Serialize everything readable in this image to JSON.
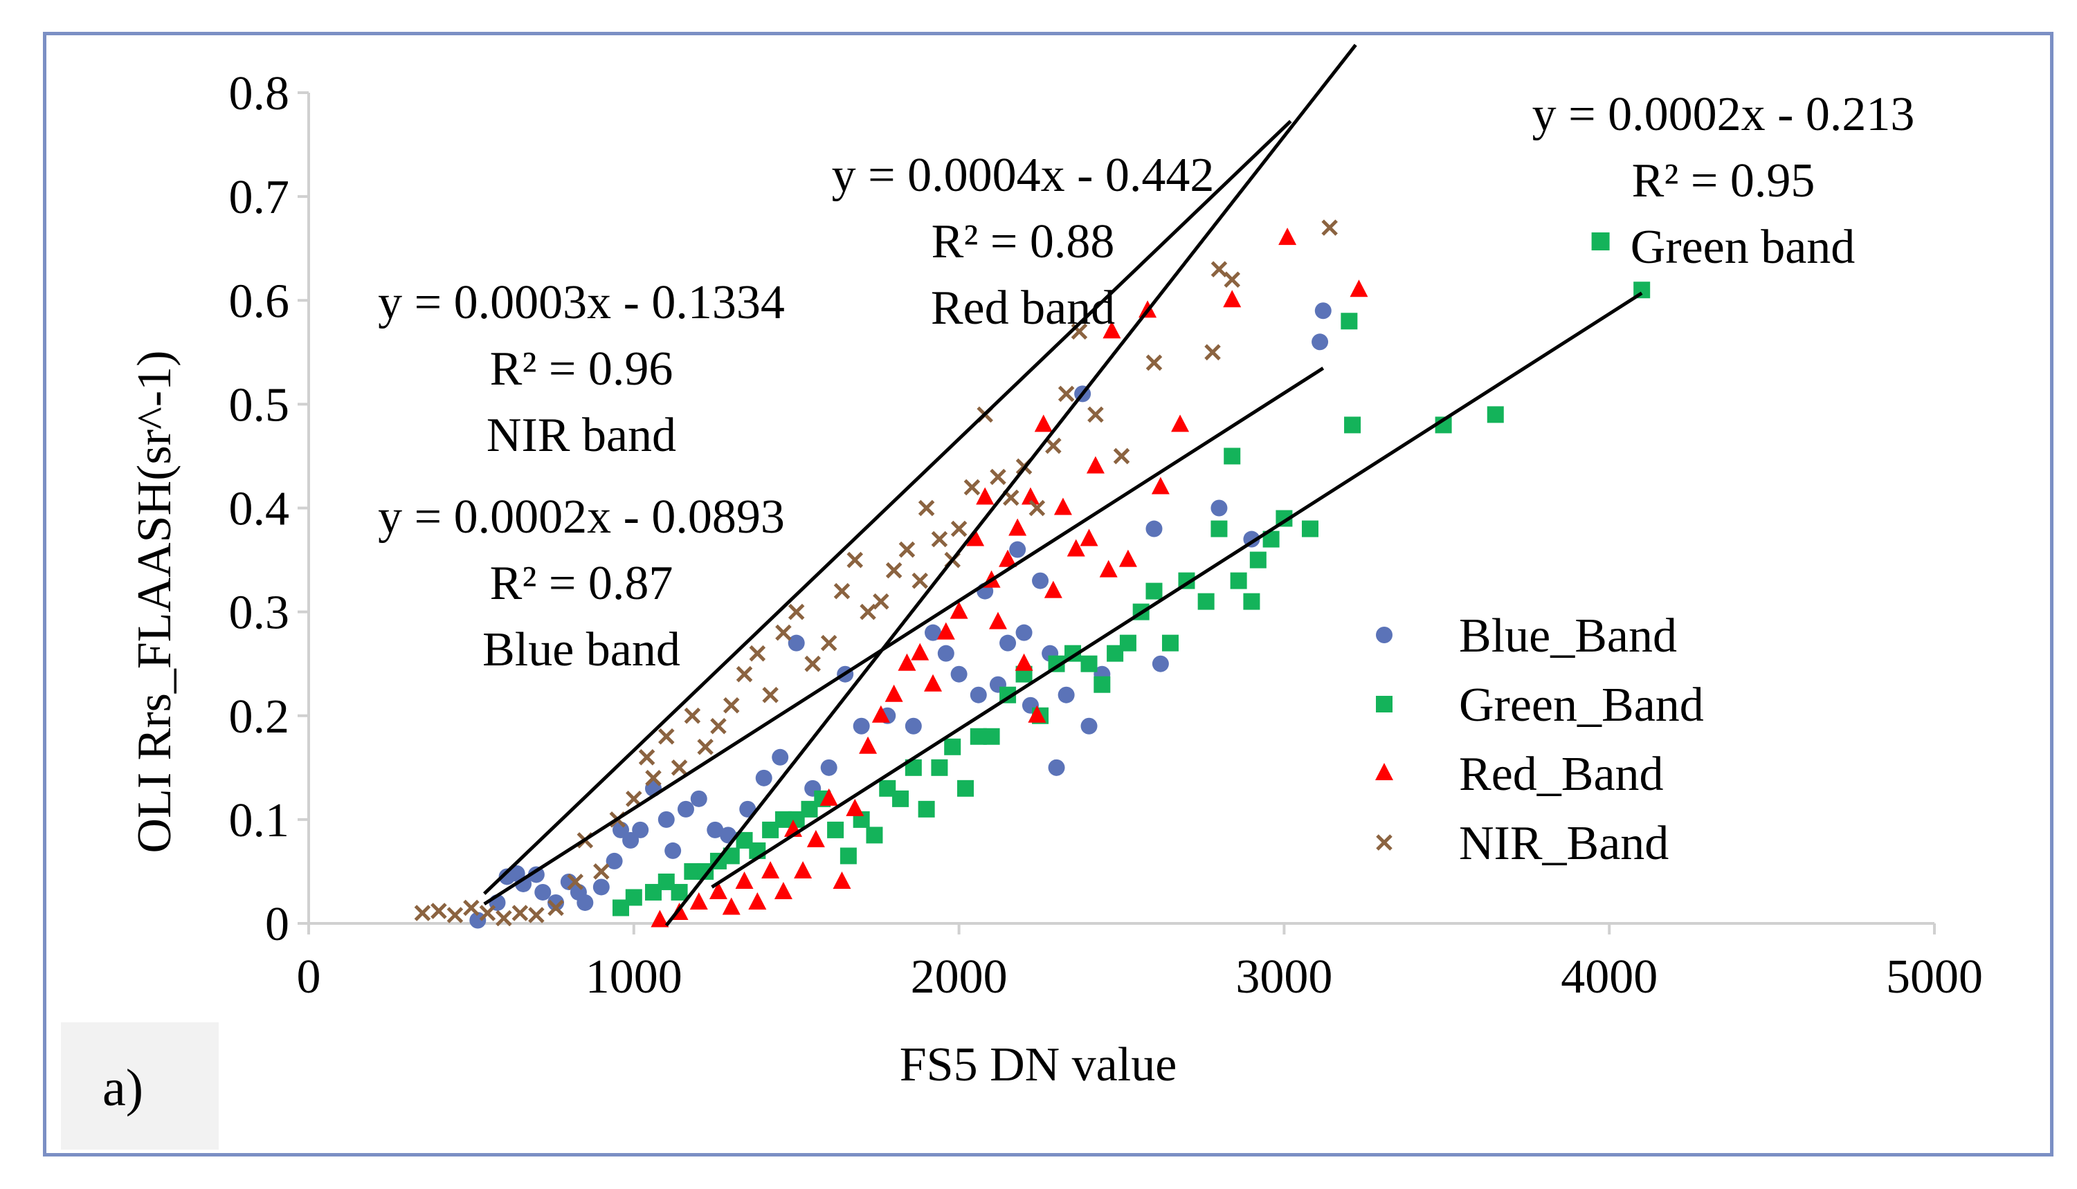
{
  "panel_label": "a)",
  "colors": {
    "blue": "#5b73b8",
    "green": "#14b35a",
    "red": "#ff0000",
    "nir": "#8b6340",
    "frame": "#7b8fc4",
    "axis": "#d0d0d0"
  },
  "chart_data": {
    "type": "scatter",
    "title": "",
    "xlabel": "FS5 DN value",
    "ylabel": "OLI Rrs_FLAASH(sr^-1)",
    "xlim": [
      0,
      5000
    ],
    "ylim": [
      0,
      0.8
    ],
    "xticks": [
      "0",
      "1000",
      "2000",
      "3000",
      "4000",
      "5000"
    ],
    "yticks": [
      "0",
      "0.1",
      "0.2",
      "0.3",
      "0.4",
      "0.5",
      "0.6",
      "0.7",
      "0.8"
    ],
    "grid": false,
    "legend_position": "bottom-right",
    "series": [
      {
        "name": "Blue_Band",
        "marker": "circle",
        "color": "#5b73b8",
        "points": [
          [
            520,
            0.003
          ],
          [
            580,
            0.02
          ],
          [
            610,
            0.045
          ],
          [
            640,
            0.048
          ],
          [
            660,
            0.038
          ],
          [
            700,
            0.047
          ],
          [
            720,
            0.03
          ],
          [
            760,
            0.02
          ],
          [
            800,
            0.04
          ],
          [
            830,
            0.03
          ],
          [
            850,
            0.02
          ],
          [
            900,
            0.035
          ],
          [
            940,
            0.06
          ],
          [
            960,
            0.09
          ],
          [
            990,
            0.08
          ],
          [
            1020,
            0.09
          ],
          [
            1060,
            0.13
          ],
          [
            1100,
            0.1
          ],
          [
            1120,
            0.07
          ],
          [
            1160,
            0.11
          ],
          [
            1200,
            0.12
          ],
          [
            1250,
            0.09
          ],
          [
            1290,
            0.085
          ],
          [
            1350,
            0.11
          ],
          [
            1400,
            0.14
          ],
          [
            1450,
            0.16
          ],
          [
            1500,
            0.27
          ],
          [
            1550,
            0.13
          ],
          [
            1600,
            0.15
          ],
          [
            1650,
            0.24
          ],
          [
            1700,
            0.19
          ],
          [
            1780,
            0.2
          ],
          [
            1860,
            0.19
          ],
          [
            1920,
            0.28
          ],
          [
            1960,
            0.26
          ],
          [
            2000,
            0.24
          ],
          [
            2060,
            0.22
          ],
          [
            2080,
            0.32
          ],
          [
            2120,
            0.23
          ],
          [
            2150,
            0.27
          ],
          [
            2180,
            0.36
          ],
          [
            2200,
            0.28
          ],
          [
            2220,
            0.21
          ],
          [
            2250,
            0.33
          ],
          [
            2280,
            0.26
          ],
          [
            2300,
            0.15
          ],
          [
            2330,
            0.22
          ],
          [
            2380,
            0.51
          ],
          [
            2400,
            0.19
          ],
          [
            2440,
            0.24
          ],
          [
            2600,
            0.38
          ],
          [
            2620,
            0.25
          ],
          [
            2800,
            0.4
          ],
          [
            2900,
            0.37
          ],
          [
            3120,
            0.59
          ],
          [
            3110,
            0.56
          ]
        ]
      },
      {
        "name": "Green_Band",
        "marker": "square",
        "color": "#14b35a",
        "points": [
          [
            960,
            0.015
          ],
          [
            1000,
            0.025
          ],
          [
            1060,
            0.03
          ],
          [
            1100,
            0.04
          ],
          [
            1140,
            0.03
          ],
          [
            1180,
            0.05
          ],
          [
            1220,
            0.05
          ],
          [
            1260,
            0.06
          ],
          [
            1300,
            0.065
          ],
          [
            1340,
            0.08
          ],
          [
            1380,
            0.07
          ],
          [
            1420,
            0.09
          ],
          [
            1460,
            0.1
          ],
          [
            1500,
            0.1
          ],
          [
            1540,
            0.11
          ],
          [
            1580,
            0.12
          ],
          [
            1620,
            0.09
          ],
          [
            1660,
            0.065
          ],
          [
            1700,
            0.1
          ],
          [
            1740,
            0.085
          ],
          [
            1780,
            0.13
          ],
          [
            1820,
            0.12
          ],
          [
            1860,
            0.15
          ],
          [
            1900,
            0.11
          ],
          [
            1940,
            0.15
          ],
          [
            1980,
            0.17
          ],
          [
            2020,
            0.13
          ],
          [
            2060,
            0.18
          ],
          [
            2100,
            0.18
          ],
          [
            2150,
            0.22
          ],
          [
            2200,
            0.24
          ],
          [
            2250,
            0.2
          ],
          [
            2300,
            0.25
          ],
          [
            2350,
            0.26
          ],
          [
            2400,
            0.25
          ],
          [
            2440,
            0.23
          ],
          [
            2480,
            0.26
          ],
          [
            2520,
            0.27
          ],
          [
            2560,
            0.3
          ],
          [
            2600,
            0.32
          ],
          [
            2650,
            0.27
          ],
          [
            2700,
            0.33
          ],
          [
            2760,
            0.31
          ],
          [
            2800,
            0.38
          ],
          [
            2840,
            0.45
          ],
          [
            2860,
            0.33
          ],
          [
            2900,
            0.31
          ],
          [
            2920,
            0.35
          ],
          [
            2960,
            0.37
          ],
          [
            3000,
            0.39
          ],
          [
            3080,
            0.38
          ],
          [
            3200,
            0.58
          ],
          [
            3210,
            0.48
          ],
          [
            3490,
            0.48
          ],
          [
            3650,
            0.49
          ],
          [
            4100,
            0.61
          ]
        ]
      },
      {
        "name": "Red_Band",
        "marker": "triangle",
        "color": "#ff0000",
        "points": [
          [
            1080,
            0.003
          ],
          [
            1140,
            0.01
          ],
          [
            1200,
            0.02
          ],
          [
            1260,
            0.03
          ],
          [
            1300,
            0.015
          ],
          [
            1340,
            0.04
          ],
          [
            1380,
            0.02
          ],
          [
            1420,
            0.05
          ],
          [
            1460,
            0.03
          ],
          [
            1490,
            0.09
          ],
          [
            1520,
            0.05
          ],
          [
            1560,
            0.08
          ],
          [
            1600,
            0.12
          ],
          [
            1640,
            0.04
          ],
          [
            1680,
            0.11
          ],
          [
            1720,
            0.17
          ],
          [
            1760,
            0.2
          ],
          [
            1800,
            0.22
          ],
          [
            1840,
            0.25
          ],
          [
            1880,
            0.26
          ],
          [
            1920,
            0.23
          ],
          [
            1960,
            0.28
          ],
          [
            2000,
            0.3
          ],
          [
            2050,
            0.37
          ],
          [
            2080,
            0.41
          ],
          [
            2100,
            0.33
          ],
          [
            2120,
            0.29
          ],
          [
            2150,
            0.35
          ],
          [
            2180,
            0.38
          ],
          [
            2200,
            0.25
          ],
          [
            2220,
            0.41
          ],
          [
            2240,
            0.2
          ],
          [
            2260,
            0.48
          ],
          [
            2290,
            0.32
          ],
          [
            2320,
            0.4
          ],
          [
            2360,
            0.36
          ],
          [
            2400,
            0.37
          ],
          [
            2420,
            0.44
          ],
          [
            2460,
            0.34
          ],
          [
            2470,
            0.57
          ],
          [
            2520,
            0.35
          ],
          [
            2580,
            0.59
          ],
          [
            2620,
            0.42
          ],
          [
            2680,
            0.48
          ],
          [
            2840,
            0.6
          ],
          [
            3010,
            0.66
          ],
          [
            3230,
            0.61
          ]
        ]
      },
      {
        "name": "NIR_Band",
        "marker": "x",
        "color": "#8b6340",
        "points": [
          [
            350,
            0.01
          ],
          [
            400,
            0.012
          ],
          [
            450,
            0.008
          ],
          [
            500,
            0.015
          ],
          [
            550,
            0.01
          ],
          [
            600,
            0.005
          ],
          [
            650,
            0.01
          ],
          [
            700,
            0.008
          ],
          [
            760,
            0.015
          ],
          [
            820,
            0.04
          ],
          [
            850,
            0.08
          ],
          [
            900,
            0.05
          ],
          [
            950,
            0.1
          ],
          [
            1000,
            0.12
          ],
          [
            1040,
            0.16
          ],
          [
            1060,
            0.14
          ],
          [
            1100,
            0.18
          ],
          [
            1140,
            0.15
          ],
          [
            1180,
            0.2
          ],
          [
            1220,
            0.17
          ],
          [
            1260,
            0.19
          ],
          [
            1300,
            0.21
          ],
          [
            1340,
            0.24
          ],
          [
            1380,
            0.26
          ],
          [
            1420,
            0.22
          ],
          [
            1460,
            0.28
          ],
          [
            1500,
            0.3
          ],
          [
            1550,
            0.25
          ],
          [
            1600,
            0.27
          ],
          [
            1640,
            0.32
          ],
          [
            1680,
            0.35
          ],
          [
            1720,
            0.3
          ],
          [
            1760,
            0.31
          ],
          [
            1800,
            0.34
          ],
          [
            1840,
            0.36
          ],
          [
            1880,
            0.33
          ],
          [
            1900,
            0.4
          ],
          [
            1940,
            0.37
          ],
          [
            1980,
            0.35
          ],
          [
            2000,
            0.38
          ],
          [
            2040,
            0.42
          ],
          [
            2080,
            0.49
          ],
          [
            2120,
            0.43
          ],
          [
            2160,
            0.41
          ],
          [
            2200,
            0.44
          ],
          [
            2240,
            0.4
          ],
          [
            2290,
            0.46
          ],
          [
            2330,
            0.51
          ],
          [
            2370,
            0.57
          ],
          [
            2420,
            0.49
          ],
          [
            2500,
            0.45
          ],
          [
            2600,
            0.54
          ],
          [
            2780,
            0.55
          ],
          [
            2800,
            0.63
          ],
          [
            2840,
            0.62
          ],
          [
            3140,
            0.67
          ]
        ]
      }
    ],
    "trendlines": [
      {
        "series": "Blue_Band",
        "x_range": [
          540,
          3120
        ],
        "equation": "y = 0.0002x - 0.0893",
        "r2": "R² = 0.87",
        "label": "Blue band"
      },
      {
        "series": "Green_Band",
        "x_range": [
          1240,
          4100
        ],
        "equation": "y = 0.0002x - 0.213",
        "r2": "R² = 0.95",
        "label": "Green band"
      },
      {
        "series": "Red_Band",
        "x_range": [
          1100,
          3220
        ],
        "equation": "y = 0.0004x - 0.442",
        "r2": "R² = 0.88",
        "label": "Red band"
      },
      {
        "series": "NIR_Band",
        "x_range": [
          540,
          3020
        ],
        "equation": "y = 0.0003x - 0.1334",
        "r2": "R² = 0.96",
        "label": "NIR band"
      }
    ]
  }
}
